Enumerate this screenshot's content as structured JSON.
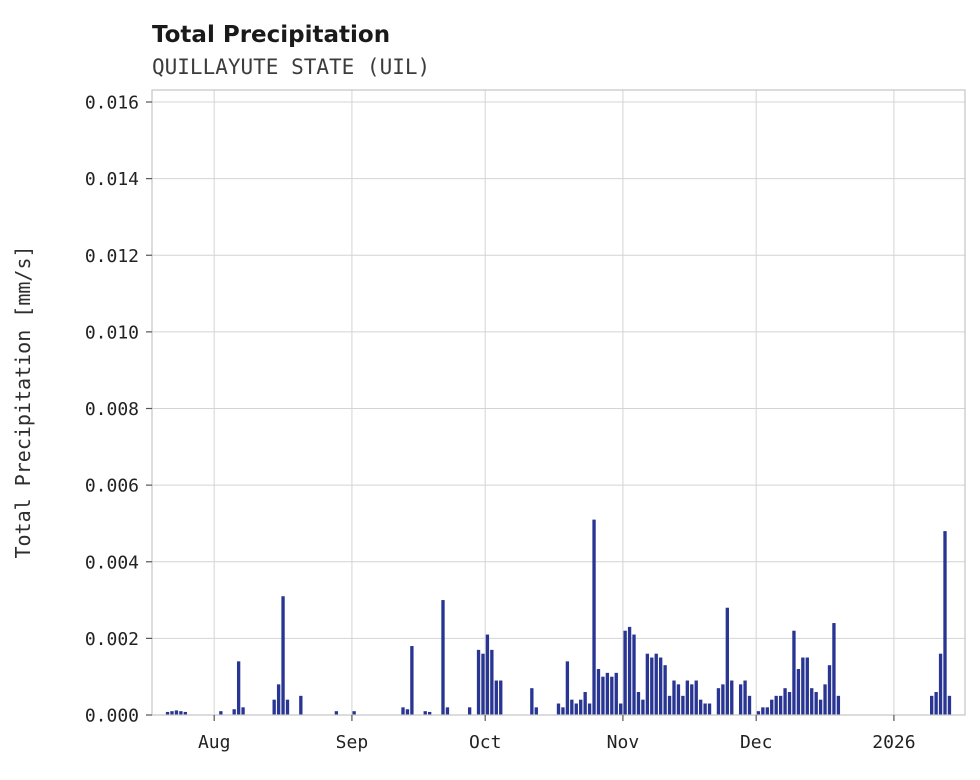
{
  "chart_data": {
    "type": "bar",
    "title": "Total Precipitation",
    "subtitle": "QUILLAYUTE STATE (UIL)",
    "xlabel": "",
    "ylabel": "Total Precipitation [mm/s]",
    "ylim": [
      0,
      0.016
    ],
    "grid": true,
    "legend": false,
    "bar_color": "#283593",
    "x_domain": [
      "2025-07-18",
      "2026-01-17"
    ],
    "yticks": [
      0,
      0.002,
      0.004,
      0.006,
      0.008,
      0.01,
      0.012,
      0.014,
      0.016
    ],
    "ytick_labels": [
      "0.000",
      "0.002",
      "0.004",
      "0.006",
      "0.008",
      "0.010",
      "0.012",
      "0.014",
      "0.016"
    ],
    "xticks": [
      {
        "label": "Aug",
        "date": "2025-08-01"
      },
      {
        "label": "Sep",
        "date": "2025-09-01"
      },
      {
        "label": "Oct",
        "date": "2025-10-01"
      },
      {
        "label": "Nov",
        "date": "2025-11-01"
      },
      {
        "label": "Dec",
        "date": "2025-12-01"
      },
      {
        "label": "2026",
        "date": "2026-01-01"
      }
    ],
    "series": [
      {
        "name": "Total Precipitation",
        "units": "mm/s",
        "points": [
          [
            "2025-07-21",
            8e-05
          ],
          [
            "2025-07-22",
            0.0001
          ],
          [
            "2025-07-23",
            0.00012
          ],
          [
            "2025-07-24",
            0.0001
          ],
          [
            "2025-07-25",
            8e-05
          ],
          [
            "2025-08-02",
            0.0001
          ],
          [
            "2025-08-05",
            0.00015
          ],
          [
            "2025-08-06",
            0.0014
          ],
          [
            "2025-08-07",
            0.0002
          ],
          [
            "2025-08-14",
            0.0004
          ],
          [
            "2025-08-15",
            0.0008
          ],
          [
            "2025-08-16",
            0.0031
          ],
          [
            "2025-08-17",
            0.0004
          ],
          [
            "2025-08-20",
            0.0005
          ],
          [
            "2025-08-28",
            0.0001
          ],
          [
            "2025-09-01",
            0.0001
          ],
          [
            "2025-09-12",
            0.0002
          ],
          [
            "2025-09-13",
            0.00015
          ],
          [
            "2025-09-14",
            0.0018
          ],
          [
            "2025-09-17",
            0.0001
          ],
          [
            "2025-09-18",
            8e-05
          ],
          [
            "2025-09-21",
            0.003
          ],
          [
            "2025-09-22",
            0.0002
          ],
          [
            "2025-09-27",
            0.0002
          ],
          [
            "2025-09-29",
            0.0017
          ],
          [
            "2025-09-30",
            0.0016
          ],
          [
            "2025-10-01",
            0.0021
          ],
          [
            "2025-10-02",
            0.0017
          ],
          [
            "2025-10-03",
            0.0009
          ],
          [
            "2025-10-04",
            0.0009
          ],
          [
            "2025-10-11",
            0.0007
          ],
          [
            "2025-10-12",
            0.0002
          ],
          [
            "2025-10-17",
            0.0003
          ],
          [
            "2025-10-18",
            0.0002
          ],
          [
            "2025-10-19",
            0.0014
          ],
          [
            "2025-10-20",
            0.0004
          ],
          [
            "2025-10-21",
            0.0003
          ],
          [
            "2025-10-22",
            0.0004
          ],
          [
            "2025-10-23",
            0.0006
          ],
          [
            "2025-10-24",
            0.0003
          ],
          [
            "2025-10-25",
            0.0051
          ],
          [
            "2025-10-26",
            0.0012
          ],
          [
            "2025-10-27",
            0.001
          ],
          [
            "2025-10-28",
            0.0011
          ],
          [
            "2025-10-29",
            0.001
          ],
          [
            "2025-10-30",
            0.0011
          ],
          [
            "2025-10-31",
            0.0003
          ],
          [
            "2025-11-01",
            0.0022
          ],
          [
            "2025-11-02",
            0.0023
          ],
          [
            "2025-11-03",
            0.0021
          ],
          [
            "2025-11-04",
            0.0006
          ],
          [
            "2025-11-05",
            0.0004
          ],
          [
            "2025-11-06",
            0.0016
          ],
          [
            "2025-11-07",
            0.0015
          ],
          [
            "2025-11-08",
            0.0016
          ],
          [
            "2025-11-09",
            0.0015
          ],
          [
            "2025-11-10",
            0.0013
          ],
          [
            "2025-11-11",
            0.0005
          ],
          [
            "2025-11-12",
            0.0009
          ],
          [
            "2025-11-13",
            0.0008
          ],
          [
            "2025-11-14",
            0.0005
          ],
          [
            "2025-11-15",
            0.0009
          ],
          [
            "2025-11-16",
            0.0008
          ],
          [
            "2025-11-17",
            0.0009
          ],
          [
            "2025-11-18",
            0.0004
          ],
          [
            "2025-11-19",
            0.0003
          ],
          [
            "2025-11-20",
            0.0003
          ],
          [
            "2025-11-22",
            0.0007
          ],
          [
            "2025-11-23",
            0.0008
          ],
          [
            "2025-11-24",
            0.0028
          ],
          [
            "2025-11-25",
            0.0009
          ],
          [
            "2025-11-27",
            0.0008
          ],
          [
            "2025-11-28",
            0.0009
          ],
          [
            "2025-11-29",
            0.0005
          ],
          [
            "2025-12-01",
            0.0001
          ],
          [
            "2025-12-02",
            0.0002
          ],
          [
            "2025-12-03",
            0.0002
          ],
          [
            "2025-12-04",
            0.0004
          ],
          [
            "2025-12-05",
            0.0005
          ],
          [
            "2025-12-06",
            0.0005
          ],
          [
            "2025-12-07",
            0.0007
          ],
          [
            "2025-12-08",
            0.0006
          ],
          [
            "2025-12-09",
            0.0022
          ],
          [
            "2025-12-10",
            0.0012
          ],
          [
            "2025-12-11",
            0.0015
          ],
          [
            "2025-12-12",
            0.0015
          ],
          [
            "2025-12-13",
            0.0007
          ],
          [
            "2025-12-14",
            0.0006
          ],
          [
            "2025-12-15",
            0.0004
          ],
          [
            "2025-12-16",
            0.0008
          ],
          [
            "2025-12-17",
            0.0013
          ],
          [
            "2025-12-18",
            0.0024
          ],
          [
            "2025-12-19",
            0.0005
          ],
          [
            "2026-01-09",
            0.0005
          ],
          [
            "2026-01-10",
            0.0006
          ],
          [
            "2026-01-11",
            0.0016
          ],
          [
            "2026-01-12",
            0.0048
          ],
          [
            "2026-01-13",
            0.0005
          ]
        ]
      }
    ]
  }
}
